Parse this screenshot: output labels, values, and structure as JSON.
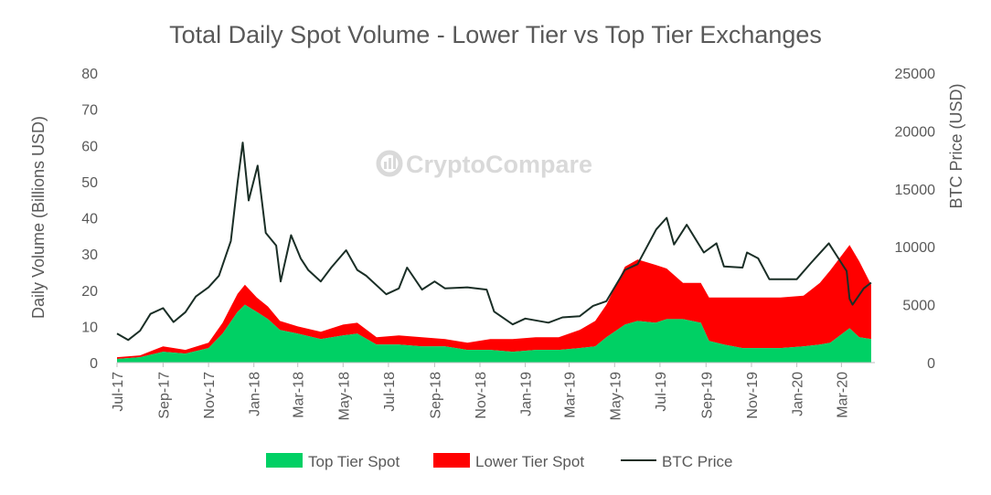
{
  "chart_data": {
    "type": "area",
    "title": "Total Daily Spot Volume - Lower Tier vs Top Tier Exchanges",
    "watermark": "CryptoCompare",
    "ylabel_left": "Daily Volume (Billions USD)",
    "ylabel_right": "BTC Price (USD)",
    "xlabel": "",
    "ylim_left": [
      0,
      80
    ],
    "ylim_right": [
      0,
      25000
    ],
    "yticks_left": [
      "0",
      "10",
      "20",
      "30",
      "40",
      "50",
      "60",
      "70",
      "80"
    ],
    "yticks_right": [
      "0",
      "5000",
      "10000",
      "15000",
      "20000",
      "25000"
    ],
    "xlim": [
      "2017-07-01",
      "2020-04-15"
    ],
    "xticks": [
      {
        "date": "2017-07-01",
        "label": "Jul-17"
      },
      {
        "date": "2017-09-01",
        "label": "Sep-17"
      },
      {
        "date": "2017-11-01",
        "label": "Nov-17"
      },
      {
        "date": "2018-01-01",
        "label": "Jan-18"
      },
      {
        "date": "2018-03-01",
        "label": "Mar-18"
      },
      {
        "date": "2018-05-01",
        "label": "May-18"
      },
      {
        "date": "2018-07-01",
        "label": "Jul-18"
      },
      {
        "date": "2018-09-01",
        "label": "Sep-18"
      },
      {
        "date": "2018-11-01",
        "label": "Nov-18"
      },
      {
        "date": "2019-01-01",
        "label": "Jan-19"
      },
      {
        "date": "2019-03-01",
        "label": "Mar-19"
      },
      {
        "date": "2019-05-01",
        "label": "May-19"
      },
      {
        "date": "2019-07-01",
        "label": "Jul-19"
      },
      {
        "date": "2019-09-01",
        "label": "Sep-19"
      },
      {
        "date": "2019-11-01",
        "label": "Nov-19"
      },
      {
        "date": "2020-01-01",
        "label": "Jan-20"
      },
      {
        "date": "2020-03-01",
        "label": "Mar-20"
      }
    ],
    "grid": false,
    "legend_position": "bottom",
    "colors": {
      "top_tier": "#00d064",
      "lower_tier": "#ff0000",
      "btc_price": "#1a2e26",
      "watermark": "#d9d9d9",
      "text": "#595959"
    },
    "series": [
      {
        "name": "Top Tier Spot",
        "type": "area",
        "axis": "left",
        "x": [
          "2017-07-01",
          "2017-08-01",
          "2017-09-01",
          "2017-10-01",
          "2017-11-01",
          "2017-11-20",
          "2017-12-10",
          "2017-12-20",
          "2018-01-05",
          "2018-01-20",
          "2018-02-05",
          "2018-03-01",
          "2018-04-01",
          "2018-05-01",
          "2018-05-20",
          "2018-06-15",
          "2018-07-15",
          "2018-08-15",
          "2018-09-15",
          "2018-10-15",
          "2018-11-15",
          "2018-12-15",
          "2019-01-15",
          "2019-02-15",
          "2019-03-15",
          "2019-04-05",
          "2019-04-20",
          "2019-05-15",
          "2019-06-01",
          "2019-06-25",
          "2019-07-10",
          "2019-08-01",
          "2019-08-25",
          "2019-09-05",
          "2019-09-25",
          "2019-10-20",
          "2019-11-15",
          "2019-12-10",
          "2020-01-10",
          "2020-02-01",
          "2020-02-15",
          "2020-03-12",
          "2020-03-25",
          "2020-04-10"
        ],
        "values": [
          1.0,
          1.5,
          3.0,
          2.5,
          4.0,
          8.0,
          14.0,
          16.0,
          14.0,
          12.0,
          9.0,
          8.0,
          6.5,
          7.5,
          8.0,
          5.0,
          5.0,
          4.5,
          4.5,
          3.5,
          3.5,
          3.0,
          3.5,
          3.5,
          4.0,
          4.5,
          7.0,
          10.5,
          11.5,
          11.0,
          12.0,
          12.0,
          11.0,
          6.0,
          5.0,
          4.0,
          4.0,
          4.0,
          4.5,
          5.0,
          5.5,
          9.5,
          7.0,
          6.5
        ]
      },
      {
        "name": "Lower Tier Spot",
        "type": "area",
        "stacked_on": "Top Tier Spot",
        "axis": "left",
        "x": [
          "2017-07-01",
          "2017-08-01",
          "2017-09-01",
          "2017-10-01",
          "2017-11-01",
          "2017-11-20",
          "2017-12-10",
          "2017-12-20",
          "2018-01-05",
          "2018-01-20",
          "2018-02-05",
          "2018-03-01",
          "2018-04-01",
          "2018-05-01",
          "2018-05-20",
          "2018-06-15",
          "2018-07-15",
          "2018-08-15",
          "2018-09-15",
          "2018-10-15",
          "2018-11-15",
          "2018-12-15",
          "2019-01-15",
          "2019-02-15",
          "2019-03-15",
          "2019-04-05",
          "2019-04-20",
          "2019-05-15",
          "2019-06-01",
          "2019-06-25",
          "2019-07-10",
          "2019-08-01",
          "2019-08-25",
          "2019-09-05",
          "2019-09-25",
          "2019-10-20",
          "2019-11-15",
          "2019-12-10",
          "2020-01-10",
          "2020-02-01",
          "2020-02-15",
          "2020-03-12",
          "2020-03-25",
          "2020-04-10"
        ],
        "values": [
          0.5,
          0.5,
          1.5,
          1.0,
          1.5,
          3.0,
          5.0,
          5.5,
          4.0,
          3.5,
          2.5,
          2.0,
          2.0,
          3.0,
          3.0,
          2.0,
          2.5,
          2.5,
          2.0,
          2.0,
          3.0,
          3.5,
          3.5,
          3.5,
          5.0,
          7.0,
          9.0,
          16.0,
          17.0,
          16.0,
          14.0,
          10.0,
          11.0,
          12.0,
          13.0,
          14.0,
          14.0,
          14.0,
          14.0,
          17.0,
          20.0,
          23.0,
          21.0,
          15.0
        ]
      },
      {
        "name": "BTC Price",
        "type": "line",
        "axis": "right",
        "x": [
          "2017-07-01",
          "2017-07-16",
          "2017-08-01",
          "2017-08-15",
          "2017-09-01",
          "2017-09-15",
          "2017-10-01",
          "2017-10-15",
          "2017-11-01",
          "2017-11-15",
          "2017-12-01",
          "2017-12-10",
          "2017-12-17",
          "2017-12-25",
          "2018-01-06",
          "2018-01-17",
          "2018-01-31",
          "2018-02-06",
          "2018-02-20",
          "2018-03-05",
          "2018-03-15",
          "2018-04-01",
          "2018-04-15",
          "2018-05-05",
          "2018-05-20",
          "2018-06-01",
          "2018-06-28",
          "2018-07-15",
          "2018-07-26",
          "2018-08-15",
          "2018-09-01",
          "2018-09-15",
          "2018-10-15",
          "2018-11-10",
          "2018-11-20",
          "2018-12-15",
          "2019-01-01",
          "2019-02-01",
          "2019-02-20",
          "2019-03-15",
          "2019-04-02",
          "2019-04-20",
          "2019-05-15",
          "2019-06-01",
          "2019-06-26",
          "2019-07-10",
          "2019-07-20",
          "2019-08-06",
          "2019-08-29",
          "2019-09-15",
          "2019-09-25",
          "2019-10-20",
          "2019-10-26",
          "2019-11-10",
          "2019-11-25",
          "2019-12-15",
          "2020-01-01",
          "2020-01-20",
          "2020-02-13",
          "2020-03-01",
          "2020-03-08",
          "2020-03-12",
          "2020-03-16",
          "2020-03-31",
          "2020-04-10"
        ],
        "values": [
          2500,
          1950,
          2750,
          4200,
          4700,
          3500,
          4350,
          5700,
          6500,
          7500,
          10500,
          15500,
          19000,
          14000,
          17000,
          11200,
          10100,
          7000,
          11000,
          9000,
          8000,
          7000,
          8200,
          9700,
          8000,
          7500,
          5900,
          6400,
          8200,
          6300,
          7000,
          6400,
          6500,
          6300,
          4400,
          3300,
          3800,
          3450,
          3900,
          4000,
          4900,
          5300,
          8000,
          8500,
          11500,
          12500,
          10200,
          11900,
          9500,
          10300,
          8300,
          8200,
          9500,
          9000,
          7200,
          7200,
          7200,
          8600,
          10300,
          8600,
          7900,
          5500,
          5000,
          6400,
          6900
        ]
      }
    ]
  }
}
